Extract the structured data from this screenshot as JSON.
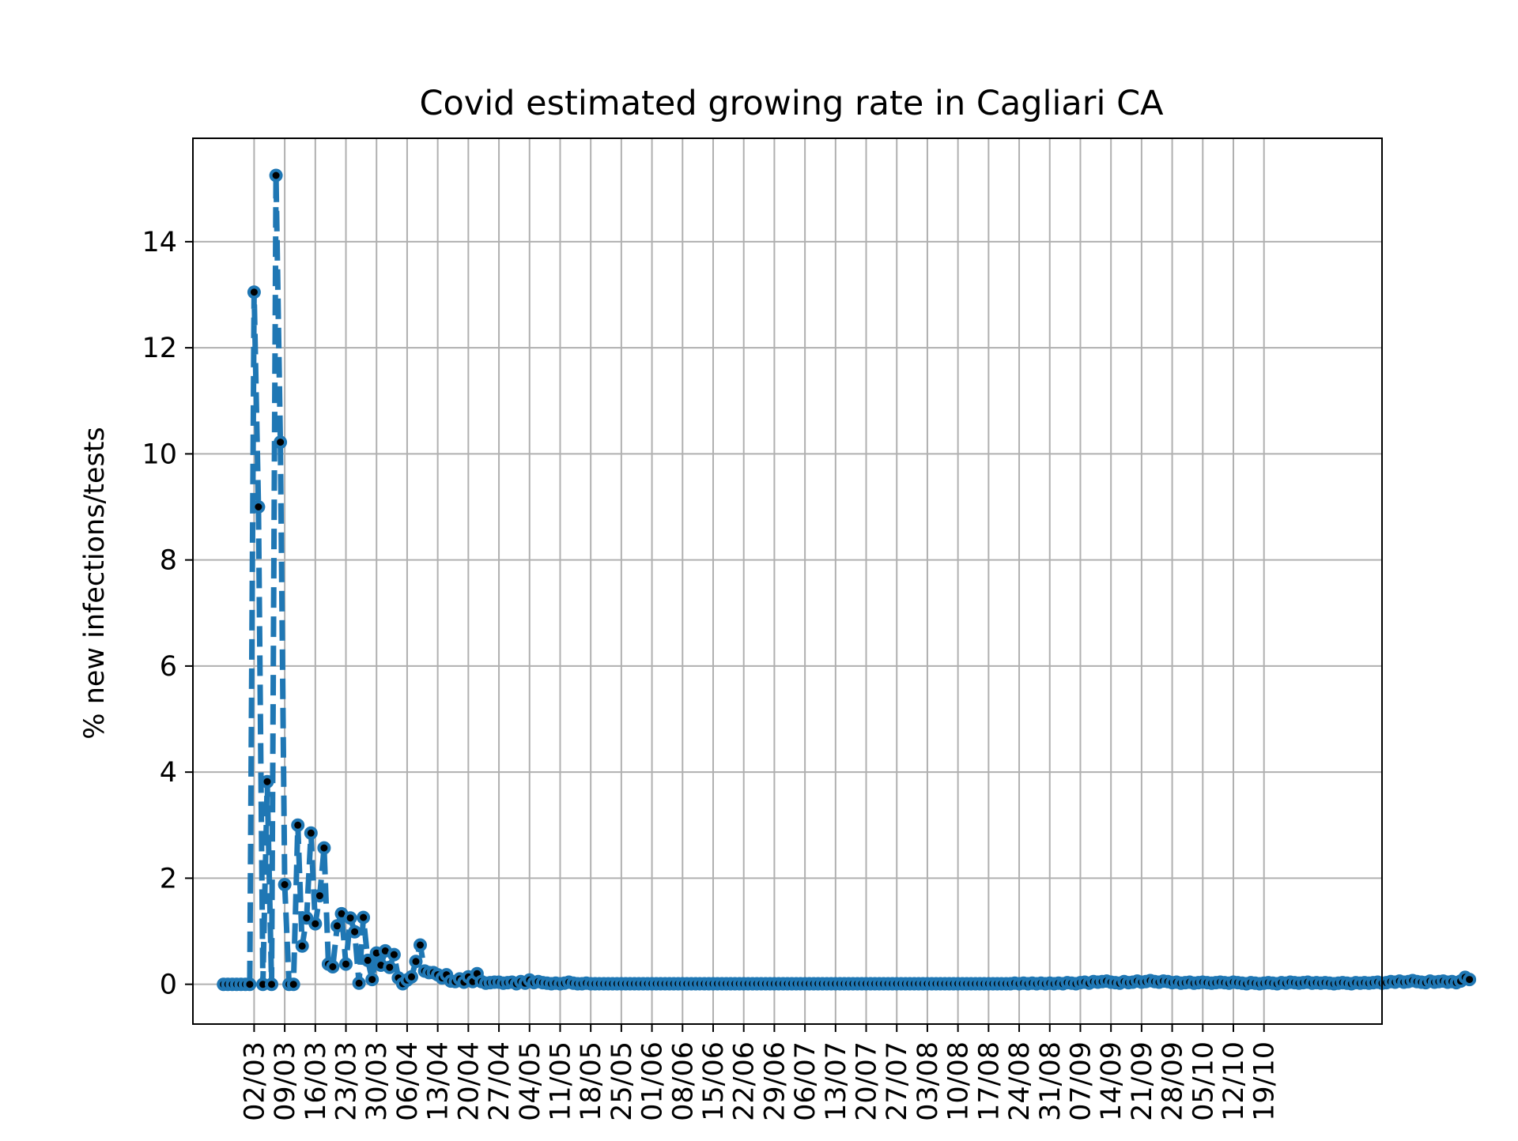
{
  "chart_data": {
    "type": "line",
    "title": "Covid estimated growing rate in Cagliari CA",
    "xlabel": "",
    "ylabel": "% new infections/tests",
    "x_start": "24/02",
    "xtick_labels": [
      "02/03",
      "09/03",
      "16/03",
      "23/03",
      "30/03",
      "06/04",
      "13/04",
      "20/04",
      "27/04",
      "04/05",
      "11/05",
      "18/05",
      "25/05",
      "01/06",
      "08/06",
      "15/06",
      "22/06",
      "29/06",
      "06/07",
      "13/07",
      "20/07",
      "27/07",
      "03/08",
      "10/08",
      "17/08",
      "24/08",
      "31/08",
      "07/09",
      "14/09",
      "21/09",
      "28/09",
      "05/10",
      "12/10",
      "19/10"
    ],
    "yticks": [
      0,
      2,
      4,
      6,
      8,
      10,
      12,
      14
    ],
    "xlim_days": [
      -7,
      265
    ],
    "ylim": [
      -0.75,
      15.95
    ],
    "grid": true,
    "legend": "none",
    "line_color": "#1f77b4",
    "marker_color": "#000000",
    "series": [
      {
        "values": [
          0,
          0,
          0,
          0,
          0,
          0,
          0,
          13.05,
          9.0,
          0,
          3.82,
          0,
          15.25,
          10.22,
          1.88,
          0,
          0,
          3.0,
          0.72,
          1.25,
          2.85,
          1.14,
          1.67,
          2.57,
          0.38,
          0.33,
          1.1,
          1.33,
          0.38,
          1.25,
          0.99,
          0.02,
          1.26,
          0.45,
          0.09,
          0.59,
          0.36,
          0.63,
          0.32,
          0.56,
          0.12,
          0.01,
          0.08,
          0.14,
          0.43,
          0.74,
          0.25,
          0.22,
          0.22,
          0.18,
          0.12,
          0.18,
          0.06,
          0.05,
          0.1,
          0.04,
          0.14,
          0.05,
          0.2,
          0.05,
          0.02,
          0.03,
          0.04,
          0.04,
          0.02,
          0.03,
          0.04,
          0.01,
          0.05,
          0.02,
          0.08,
          0.03,
          0.05,
          0.03,
          0.02,
          0.01,
          0.02,
          0.01,
          0.02,
          0.04,
          0.02,
          0.01,
          0.01,
          0.02,
          0.01,
          0.01,
          0.01,
          0.01,
          0.01,
          0.01,
          0.01,
          0.01,
          0.01,
          0.01,
          0.01,
          0.01,
          0.01,
          0.01,
          0.01,
          0.01,
          0.01,
          0.01,
          0.01,
          0.01,
          0.01,
          0.01,
          0.01,
          0.01,
          0.01,
          0.01,
          0.01,
          0.01,
          0.01,
          0.01,
          0.01,
          0.01,
          0.01,
          0.01,
          0.01,
          0.01,
          0.01,
          0.01,
          0.01,
          0.01,
          0.01,
          0.01,
          0.01,
          0.01,
          0.01,
          0.01,
          0.01,
          0.01,
          0.01,
          0.01,
          0.01,
          0.01,
          0.01,
          0.01,
          0.01,
          0.01,
          0.01,
          0.01,
          0.01,
          0.01,
          0.01,
          0.01,
          0.01,
          0.01,
          0.01,
          0.01,
          0.01,
          0.01,
          0.01,
          0.01,
          0.01,
          0.01,
          0.01,
          0.01,
          0.01,
          0.01,
          0.01,
          0.01,
          0.01,
          0.01,
          0.01,
          0.01,
          0.01,
          0.01,
          0.01,
          0.01,
          0.01,
          0.01,
          0.01,
          0.01,
          0.01,
          0.01,
          0.01,
          0.01,
          0.01,
          0.01,
          0.01,
          0.02,
          0.01,
          0.02,
          0.01,
          0.02,
          0.01,
          0.02,
          0.01,
          0.02,
          0.01,
          0.02,
          0.01,
          0.03,
          0.02,
          0.01,
          0.03,
          0.04,
          0.02,
          0.05,
          0.04,
          0.05,
          0.06,
          0.04,
          0.03,
          0.02,
          0.05,
          0.03,
          0.04,
          0.06,
          0.04,
          0.05,
          0.07,
          0.05,
          0.04,
          0.06,
          0.05,
          0.03,
          0.04,
          0.02,
          0.03,
          0.04,
          0.02,
          0.03,
          0.04,
          0.03,
          0.02,
          0.03,
          0.04,
          0.03,
          0.02,
          0.04,
          0.03,
          0.02,
          0.01,
          0.03,
          0.02,
          0.01,
          0.02,
          0.03,
          0.02,
          0.01,
          0.03,
          0.02,
          0.04,
          0.03,
          0.02,
          0.03,
          0.04,
          0.02,
          0.03,
          0.02,
          0.03,
          0.02,
          0.01,
          0.02,
          0.03,
          0.02,
          0.01,
          0.03,
          0.02,
          0.03,
          0.02,
          0.03,
          0.04,
          0.02,
          0.03,
          0.05,
          0.04,
          0.06,
          0.04,
          0.05,
          0.07,
          0.05,
          0.04,
          0.03,
          0.06,
          0.04,
          0.05,
          0.06,
          0.04,
          0.05,
          0.03,
          0.06,
          0.13,
          0.09
        ]
      }
    ]
  }
}
